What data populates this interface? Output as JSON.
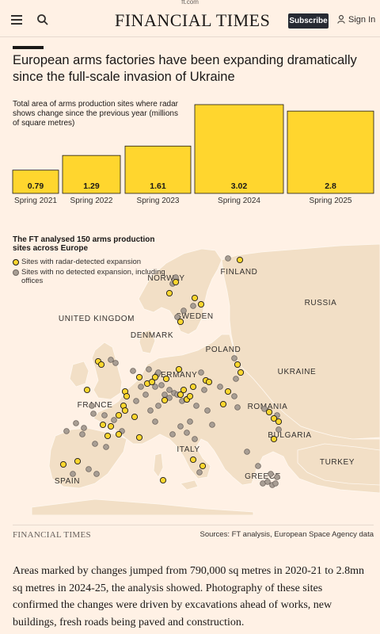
{
  "status": {
    "url": "ft.com"
  },
  "header": {
    "brand": "FINANCIAL TIMES",
    "subscribe_label": "Subscribe",
    "signin_label": "Sign In"
  },
  "article": {
    "headline": "European arms factories have been expanding dramatically since the full-scale invasion of Ukraine",
    "body": "Areas marked by changes jumped from 790,000 sq metres in 2020-21 to 2.8mn sq metres in 2024-25, the analysis showed. Photography of these sites confirmed the changes were driven by excavations ahead of works, new buildings, fresh roads being paved and construction."
  },
  "chart_data": [
    {
      "type": "bar",
      "subtitle": "Total area of arms production sites where radar shows change since the previous year (millions of square metres)",
      "categories": [
        "Spring 2021",
        "Spring 2022",
        "Spring 2023",
        "Spring 2024",
        "Spring 2025"
      ],
      "values": [
        0.79,
        1.29,
        1.61,
        3.02,
        2.8
      ],
      "value_labels": [
        "0.79",
        "1.29",
        "1.61",
        "3.02",
        "2.8"
      ],
      "ylim": [
        0,
        3.02
      ],
      "bar_color": "#ffd62e",
      "xlabel": "",
      "ylabel": ""
    }
  ],
  "map": {
    "title": "The FT analysed 150 arms production sites across Europe",
    "legend": [
      {
        "label": "Sites with radar-detected expansion",
        "color": "#ffd62e"
      },
      {
        "label": "Sites with no detected expansion, including offices",
        "color": "#a89e94"
      }
    ],
    "countries": [
      "FINLAND",
      "NORWAY",
      "RUSSIA",
      "SWEDEN",
      "UNITED KINGDOM",
      "DENMARK",
      "POLAND",
      "UKRAINE",
      "GERMANY",
      "FRANCE",
      "ROMANIA",
      "BULGARIA",
      "ITALY",
      "TURKEY",
      "SPAIN",
      "GREECE"
    ]
  },
  "footer": {
    "brand": "FINANCIAL TIMES",
    "sources": "Sources: FT analysis, European Space Agency data"
  },
  "colors": {
    "background": "#fff1e5",
    "land": "#f2dfc6",
    "sea": "#fff1e5",
    "yellow": "#ffd62e",
    "grey": "#a89e94"
  }
}
